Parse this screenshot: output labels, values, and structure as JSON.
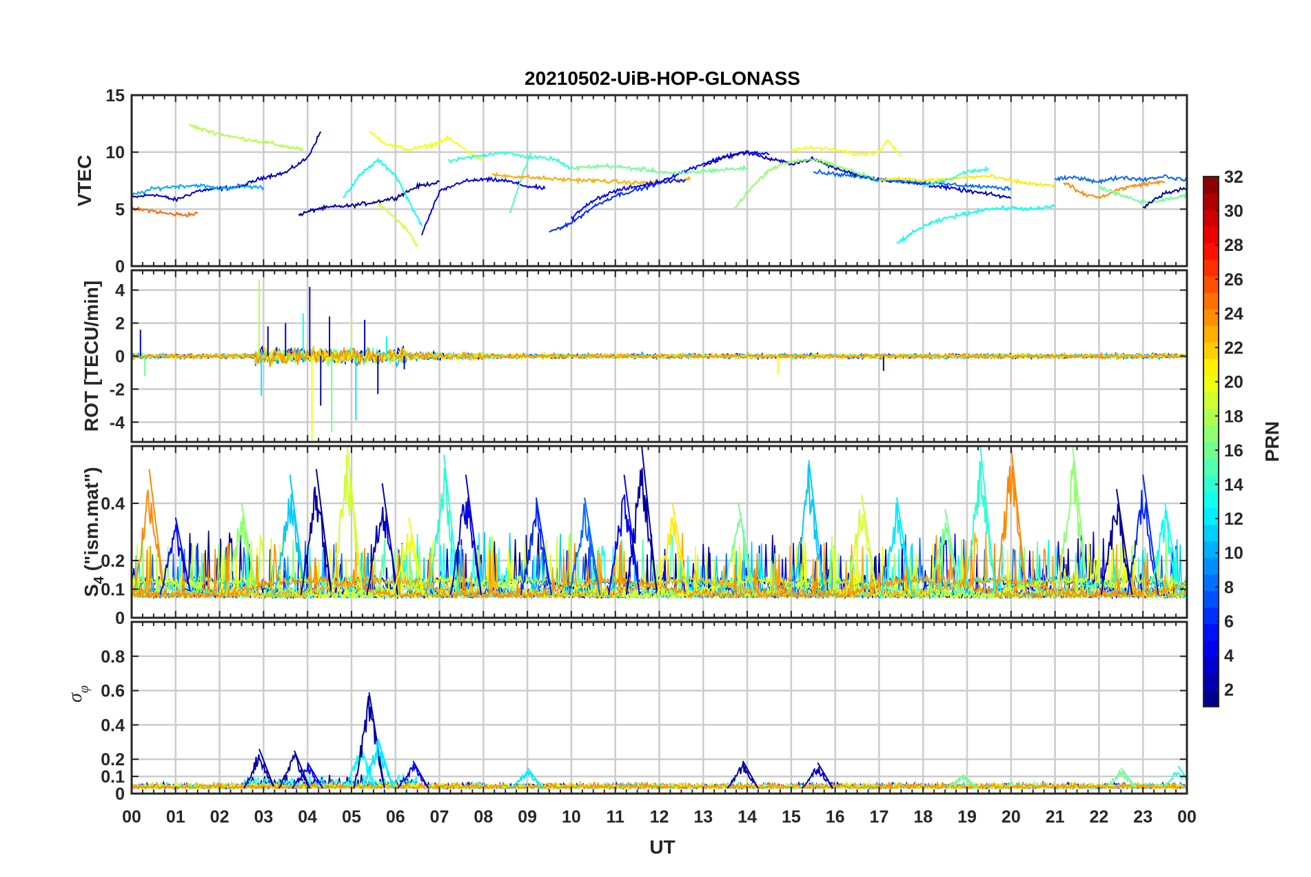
{
  "title": "20210502-UiB-HOP-GLONASS",
  "colors": {
    "grid": "#cccccc",
    "axis": "#262626",
    "text": "#262626"
  },
  "chart_data": [
    {
      "type": "line",
      "id": "vtec",
      "ylabel": "VTEC",
      "ylim": [
        0,
        15
      ],
      "yticks": [
        0,
        5,
        10,
        15
      ],
      "ytick_labels": [
        "0",
        "5",
        "10",
        "15"
      ],
      "xlim": [
        0,
        24
      ],
      "note": "multi-series (one per PRN), colored by PRN",
      "series": [
        {
          "prn": 3,
          "x": [
            0.0,
            0.5,
            1.0,
            1.5,
            2.0,
            2.5,
            3.0,
            3.5,
            4.0,
            4.3
          ],
          "y": [
            6.0,
            6.3,
            5.8,
            6.6,
            6.8,
            7.0,
            7.8,
            8.2,
            9.5,
            11.8
          ]
        },
        {
          "prn": 2,
          "x": [
            3.8,
            4.2,
            4.6,
            5.0,
            5.5,
            6.0,
            6.5,
            7.0
          ],
          "y": [
            4.5,
            5.0,
            5.2,
            5.3,
            5.6,
            6.0,
            7.0,
            7.4
          ]
        },
        {
          "prn": 25,
          "x": [
            0.0,
            0.4,
            0.8,
            1.2,
            1.5
          ],
          "y": [
            5.0,
            4.9,
            4.6,
            4.5,
            4.6
          ]
        },
        {
          "prn": 18,
          "x": [
            1.3,
            1.6,
            2.0,
            2.5,
            3.0,
            3.5,
            3.9
          ],
          "y": [
            12.4,
            12.0,
            11.6,
            11.2,
            10.9,
            10.5,
            10.2
          ]
        },
        {
          "prn": 10,
          "x": [
            0.0,
            0.5,
            1.0,
            1.5,
            2.0,
            2.5,
            3.0
          ],
          "y": [
            6.2,
            6.8,
            7.0,
            7.1,
            6.8,
            7.0,
            6.9
          ]
        },
        {
          "prn": 13,
          "x": [
            4.8,
            5.2,
            5.6,
            6.0,
            6.4,
            6.6
          ],
          "y": [
            6.0,
            8.0,
            9.3,
            8.0,
            5.0,
            3.5
          ]
        },
        {
          "prn": 20,
          "x": [
            5.4,
            5.8,
            6.3,
            6.8,
            7.2,
            7.6,
            8.0
          ],
          "y": [
            11.8,
            10.7,
            10.2,
            10.6,
            11.2,
            10.2,
            9.2
          ]
        },
        {
          "prn": 19,
          "x": [
            5.6,
            6.0,
            6.3,
            6.5
          ],
          "y": [
            5.5,
            4.2,
            3.0,
            1.7
          ]
        },
        {
          "prn": 4,
          "x": [
            6.6,
            7.0,
            7.5,
            8.0,
            8.5,
            9.0,
            9.4
          ],
          "y": [
            2.8,
            6.5,
            7.4,
            7.6,
            7.5,
            7.0,
            6.8
          ]
        },
        {
          "prn": 14,
          "x": [
            7.2,
            7.8,
            8.4,
            9.0,
            9.6,
            10.0
          ],
          "y": [
            9.2,
            9.6,
            10.0,
            9.6,
            9.4,
            8.6
          ]
        },
        {
          "prn": 15,
          "x": [
            8.6,
            8.8,
            9.0,
            9.1
          ],
          "y": [
            4.7,
            7.0,
            9.2,
            10.0
          ]
        },
        {
          "prn": 23,
          "x": [
            8.2,
            9.0,
            9.8,
            10.6,
            11.4,
            12.0,
            12.7
          ],
          "y": [
            8.0,
            7.8,
            7.6,
            7.5,
            7.3,
            7.4,
            7.6
          ]
        },
        {
          "prn": 6,
          "x": [
            9.5,
            10.0,
            10.5,
            11.0,
            11.5,
            12.0,
            12.6
          ],
          "y": [
            3.0,
            3.8,
            5.2,
            6.2,
            6.7,
            7.3,
            7.6
          ]
        },
        {
          "prn": 5,
          "x": [
            10.0,
            10.5,
            11.0,
            11.5,
            12.0,
            12.5,
            13.0,
            13.5,
            14.0,
            14.5
          ],
          "y": [
            4.2,
            5.8,
            6.6,
            7.0,
            7.4,
            8.2,
            9.0,
            9.6,
            10.0,
            9.8
          ]
        },
        {
          "prn": 16,
          "x": [
            10.0,
            10.8,
            11.6,
            12.4,
            13.2,
            14.0
          ],
          "y": [
            8.6,
            8.8,
            8.5,
            8.1,
            8.4,
            8.6
          ]
        },
        {
          "prn": 3,
          "x": [
            13.0,
            13.5,
            14.0,
            14.5,
            15.0,
            15.5,
            16.0,
            16.5,
            17.0,
            17.5,
            18.0,
            19.0,
            20.0
          ],
          "y": [
            8.8,
            9.6,
            10.0,
            9.4,
            9.0,
            9.4,
            8.6,
            8.0,
            7.6,
            7.4,
            7.2,
            6.6,
            6.0
          ]
        },
        {
          "prn": 17,
          "x": [
            13.7,
            14.0,
            14.5,
            15.0,
            15.5,
            16.0,
            16.5,
            17.0
          ],
          "y": [
            5.0,
            6.5,
            8.5,
            9.2,
            9.4,
            8.8,
            8.2,
            7.5
          ]
        },
        {
          "prn": 20,
          "x": [
            15.0,
            15.5,
            16.0,
            16.5,
            17.0,
            17.2,
            17.5
          ],
          "y": [
            10.2,
            10.4,
            10.2,
            9.8,
            10.0,
            11.2,
            9.6
          ]
        },
        {
          "prn": 8,
          "x": [
            15.5,
            16.2,
            17.0,
            17.8,
            18.5,
            19.2,
            20.0
          ],
          "y": [
            8.3,
            8.0,
            7.6,
            7.4,
            7.2,
            7.0,
            6.8
          ]
        },
        {
          "prn": 21,
          "x": [
            17.0,
            17.5,
            18.0,
            18.5,
            19.0,
            19.5,
            20.0,
            20.5,
            21.0
          ],
          "y": [
            7.6,
            7.7,
            7.5,
            7.6,
            7.8,
            7.9,
            7.5,
            7.2,
            7.0
          ]
        },
        {
          "prn": 13,
          "x": [
            17.4,
            18.0,
            18.6,
            19.0,
            19.4,
            20.0,
            20.6,
            21.0
          ],
          "y": [
            2.0,
            3.5,
            4.3,
            4.6,
            5.0,
            5.1,
            5.0,
            5.3
          ]
        },
        {
          "prn": 14,
          "x": [
            18.0,
            18.6,
            19.0,
            19.5
          ],
          "y": [
            7.0,
            7.6,
            8.3,
            8.5
          ]
        },
        {
          "prn": 8,
          "x": [
            21.0,
            21.5,
            22.0,
            22.5,
            23.0,
            23.5,
            24.0
          ],
          "y": [
            7.6,
            7.8,
            7.4,
            7.8,
            7.6,
            7.9,
            7.5
          ]
        },
        {
          "prn": 24,
          "x": [
            21.2,
            21.6,
            22.0,
            22.5,
            23.0,
            23.5
          ],
          "y": [
            7.4,
            6.4,
            6.0,
            6.8,
            7.2,
            7.4
          ]
        },
        {
          "prn": 16,
          "x": [
            22.0,
            22.5,
            23.0,
            23.5,
            24.0
          ],
          "y": [
            7.0,
            6.2,
            5.6,
            5.8,
            6.2
          ]
        },
        {
          "prn": 2,
          "x": [
            23.0,
            23.5,
            24.0
          ],
          "y": [
            5.2,
            6.4,
            6.9
          ]
        }
      ]
    },
    {
      "type": "line",
      "id": "rot",
      "ylabel": "ROT [TECU/min]",
      "ylim": [
        -5.2,
        5.2
      ],
      "yticks": [
        -4,
        -2,
        0,
        2,
        4
      ],
      "ytick_labels": [
        "-4",
        "-2",
        "0",
        "2",
        "4"
      ],
      "xlim": [
        0,
        24
      ],
      "note": "noisy ROT around 0; large excursions near 03-06 UT",
      "spikes": [
        {
          "x": 0.2,
          "y": 1.6
        },
        {
          "x": 0.3,
          "y": -1.2
        },
        {
          "x": 2.9,
          "y": 4.6
        },
        {
          "x": 2.95,
          "y": -2.4
        },
        {
          "x": 3.1,
          "y": 1.8
        },
        {
          "x": 3.5,
          "y": 2.0
        },
        {
          "x": 3.9,
          "y": 2.6
        },
        {
          "x": 4.05,
          "y": 4.2
        },
        {
          "x": 4.1,
          "y": -5.1
        },
        {
          "x": 4.3,
          "y": -3.0
        },
        {
          "x": 4.5,
          "y": 2.4
        },
        {
          "x": 4.55,
          "y": -4.6
        },
        {
          "x": 5.0,
          "y": 2.5
        },
        {
          "x": 5.1,
          "y": -3.9
        },
        {
          "x": 5.3,
          "y": 2.2
        },
        {
          "x": 5.6,
          "y": -2.3
        },
        {
          "x": 5.8,
          "y": 1.2
        },
        {
          "x": 6.2,
          "y": -0.8
        },
        {
          "x": 14.7,
          "y": -1.1
        },
        {
          "x": 17.1,
          "y": -0.9
        }
      ]
    },
    {
      "type": "line",
      "id": "s4",
      "ylabel_main": "S",
      "ylabel_sub": "4",
      "ylabel_suffix": " (\"ism.mat\")",
      "ylim": [
        0,
        0.6
      ],
      "yticks": [
        0,
        0.1,
        0.2,
        0.4
      ],
      "ytick_labels": [
        "0",
        "0.1",
        "0.2",
        "0.4"
      ],
      "xlim": [
        0,
        24
      ],
      "note": "S4 index, baseline ~0.05-0.15 with bursts",
      "peaks": [
        {
          "x": 0.4,
          "y": 0.52
        },
        {
          "x": 1.0,
          "y": 0.35
        },
        {
          "x": 2.5,
          "y": 0.4
        },
        {
          "x": 3.6,
          "y": 0.5
        },
        {
          "x": 4.2,
          "y": 0.52
        },
        {
          "x": 4.9,
          "y": 0.6
        },
        {
          "x": 5.7,
          "y": 0.47
        },
        {
          "x": 6.3,
          "y": 0.35
        },
        {
          "x": 7.1,
          "y": 0.57
        },
        {
          "x": 7.6,
          "y": 0.5
        },
        {
          "x": 9.2,
          "y": 0.42
        },
        {
          "x": 10.3,
          "y": 0.42
        },
        {
          "x": 11.2,
          "y": 0.5
        },
        {
          "x": 11.6,
          "y": 0.6
        },
        {
          "x": 12.3,
          "y": 0.4
        },
        {
          "x": 13.8,
          "y": 0.4
        },
        {
          "x": 15.4,
          "y": 0.55
        },
        {
          "x": 16.6,
          "y": 0.43
        },
        {
          "x": 17.4,
          "y": 0.42
        },
        {
          "x": 18.5,
          "y": 0.38
        },
        {
          "x": 19.3,
          "y": 0.6
        },
        {
          "x": 20.0,
          "y": 0.6
        },
        {
          "x": 21.4,
          "y": 0.6
        },
        {
          "x": 22.4,
          "y": 0.45
        },
        {
          "x": 23.0,
          "y": 0.5
        },
        {
          "x": 23.5,
          "y": 0.4
        }
      ]
    },
    {
      "type": "line",
      "id": "sigma_phi",
      "ylabel_main": "σ",
      "ylabel_sub": "φ",
      "ylim": [
        0,
        1.0
      ],
      "yticks": [
        0,
        0.1,
        0.2,
        0.4,
        0.6,
        0.8
      ],
      "ytick_labels": [
        "0",
        "0.1",
        "0.2",
        "0.4",
        "0.6",
        "0.8"
      ],
      "xlim": [
        0,
        24
      ],
      "note": "phase scintillation index, mostly < 0.15",
      "peaks": [
        {
          "x": 2.9,
          "y": 0.26
        },
        {
          "x": 3.7,
          "y": 0.25
        },
        {
          "x": 4.0,
          "y": 0.18
        },
        {
          "x": 5.2,
          "y": 0.28
        },
        {
          "x": 5.4,
          "y": 0.59
        },
        {
          "x": 5.6,
          "y": 0.32
        },
        {
          "x": 6.4,
          "y": 0.19
        },
        {
          "x": 9.0,
          "y": 0.15
        },
        {
          "x": 13.9,
          "y": 0.19
        },
        {
          "x": 15.6,
          "y": 0.18
        },
        {
          "x": 18.9,
          "y": 0.11
        },
        {
          "x": 22.5,
          "y": 0.15
        },
        {
          "x": 23.8,
          "y": 0.16
        }
      ]
    }
  ],
  "xaxis": {
    "label": "UT",
    "ticks": [
      0,
      1,
      2,
      3,
      4,
      5,
      6,
      7,
      8,
      9,
      10,
      11,
      12,
      13,
      14,
      15,
      16,
      17,
      18,
      19,
      20,
      21,
      22,
      23,
      24
    ],
    "tick_labels": [
      "00",
      "01",
      "02",
      "03",
      "04",
      "05",
      "06",
      "07",
      "08",
      "09",
      "10",
      "11",
      "12",
      "13",
      "14",
      "15",
      "16",
      "17",
      "18",
      "19",
      "20",
      "21",
      "22",
      "23",
      "00"
    ]
  },
  "colorbar": {
    "label": "PRN",
    "range": [
      1,
      32
    ],
    "ticks": [
      2,
      4,
      6,
      8,
      10,
      12,
      14,
      16,
      18,
      20,
      22,
      24,
      26,
      28,
      30,
      32
    ],
    "tick_labels": [
      "2",
      "4",
      "6",
      "8",
      "10",
      "12",
      "14",
      "16",
      "18",
      "20",
      "22",
      "24",
      "26",
      "28",
      "30",
      "32"
    ],
    "colormap": "jet"
  }
}
